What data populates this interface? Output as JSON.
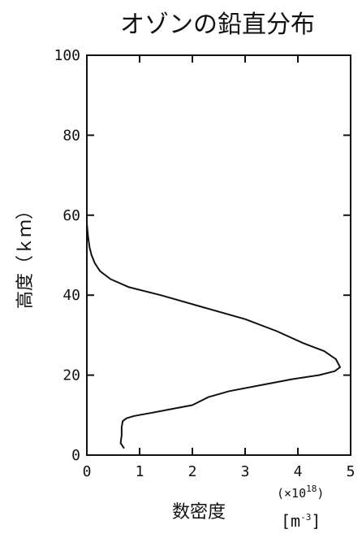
{
  "chart_data": {
    "type": "line",
    "title": "オゾンの鉛直分布",
    "xlabel": "数密度",
    "ylabel": "高度（ｋｍ）",
    "x_multiplier": "(×10",
    "x_multiplier_exponent": "18",
    "x_multiplier_close": ")",
    "x_unit_open": "[m",
    "x_unit_exponent": "-3",
    "x_unit_close": "]",
    "xlim": [
      0,
      5
    ],
    "ylim": [
      0,
      100
    ],
    "x_ticks": [
      0,
      1,
      2,
      3,
      4,
      5
    ],
    "y_ticks": [
      0,
      20,
      40,
      60,
      80,
      100
    ],
    "grid": false,
    "series": [
      {
        "x": [
          0.0,
          0.02,
          0.05,
          0.09,
          0.15,
          0.25,
          0.45,
          0.8,
          1.4,
          2.2,
          3.0,
          3.6,
          4.1,
          4.5,
          4.72,
          4.8,
          4.7,
          4.4,
          3.9,
          3.3,
          2.7,
          2.3,
          2.0,
          1.6,
          1.2,
          0.9,
          0.75,
          0.68,
          0.66,
          0.66,
          0.64,
          0.7
        ],
        "y": [
          58,
          55,
          52,
          50,
          48,
          46,
          44,
          42,
          40,
          37,
          34,
          31,
          28,
          26,
          24,
          22,
          21,
          20,
          19,
          17.5,
          16,
          14.5,
          12.5,
          11.5,
          10.5,
          9.8,
          9.2,
          8.5,
          7,
          5,
          3,
          1.8
        ]
      }
    ]
  }
}
